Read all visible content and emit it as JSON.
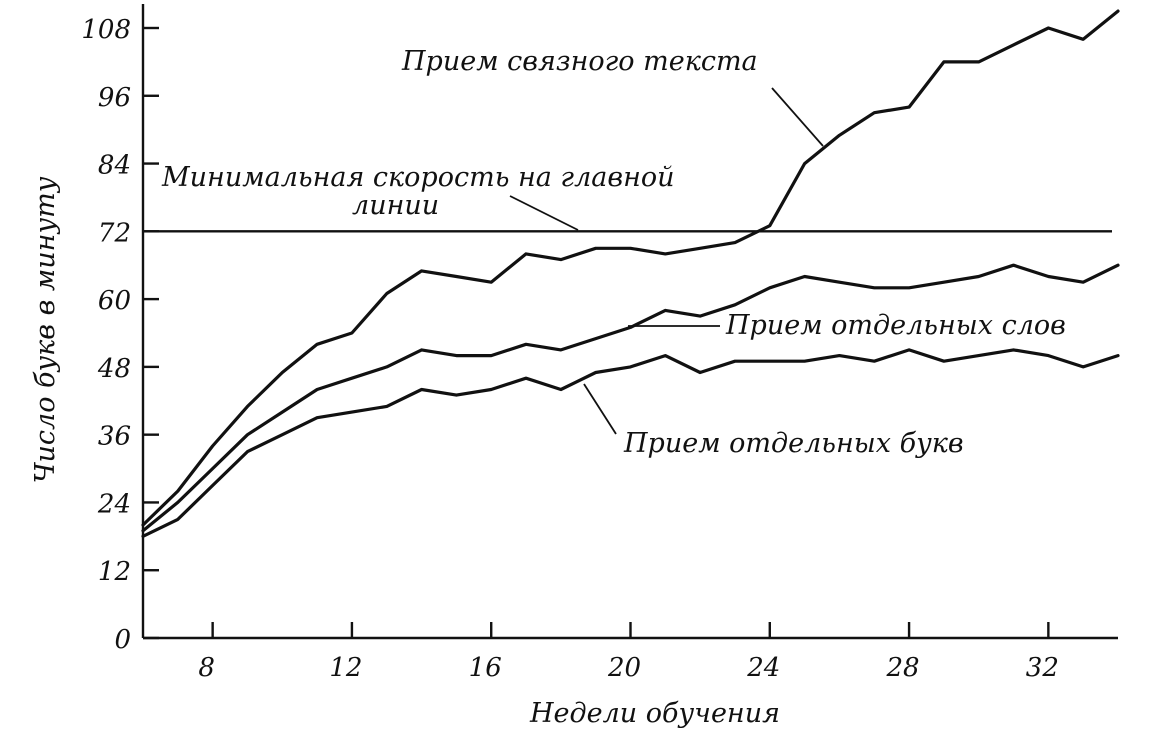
{
  "chart_data": {
    "type": "line",
    "title": "",
    "xlabel": "Недели обучения",
    "ylabel": "Число букв в минуту",
    "xlim": [
      6,
      34
    ],
    "ylim": [
      0,
      108
    ],
    "x_ticks": [
      8,
      12,
      16,
      20,
      24,
      28,
      32
    ],
    "y_ticks": [
      0,
      12,
      24,
      36,
      48,
      60,
      72,
      84,
      96,
      108
    ],
    "x_tick_labels": [
      "8",
      "12",
      "16",
      "20",
      "24",
      "28",
      "32"
    ],
    "y_tick_labels": [
      "0",
      "12",
      "24",
      "36",
      "48",
      "60",
      "72",
      "84",
      "96",
      "108"
    ],
    "grid": false,
    "reference_line": {
      "y": 72,
      "label_line1": "Минимальная скорость на главной",
      "label_line2": "линии"
    },
    "series": [
      {
        "name": "Прием связного текста",
        "x": [
          6,
          7,
          8,
          9,
          10,
          11,
          12,
          13,
          14,
          15,
          16,
          17,
          18,
          19,
          20,
          21,
          22,
          23,
          24,
          25,
          26,
          27,
          28,
          29,
          30,
          31,
          32,
          33,
          34
        ],
        "y": [
          20,
          26,
          34,
          41,
          47,
          52,
          54,
          61,
          65,
          64,
          63,
          68,
          67,
          69,
          69,
          68,
          69,
          70,
          73,
          84,
          89,
          93,
          94,
          102,
          102,
          105,
          108,
          106,
          111
        ]
      },
      {
        "name": "Прием отдельных слов",
        "x": [
          6,
          7,
          8,
          9,
          10,
          11,
          12,
          13,
          14,
          15,
          16,
          17,
          18,
          19,
          20,
          21,
          22,
          23,
          24,
          25,
          26,
          27,
          28,
          29,
          30,
          31,
          32,
          33,
          34
        ],
        "y": [
          19,
          24,
          30,
          36,
          40,
          44,
          46,
          48,
          51,
          50,
          50,
          52,
          51,
          53,
          55,
          58,
          57,
          59,
          62,
          64,
          63,
          62,
          62,
          63,
          64,
          66,
          64,
          63,
          66
        ]
      },
      {
        "name": "Прием отдельных букв",
        "x": [
          6,
          7,
          8,
          9,
          10,
          11,
          12,
          13,
          14,
          15,
          16,
          17,
          18,
          19,
          20,
          21,
          22,
          23,
          24,
          25,
          26,
          27,
          28,
          29,
          30,
          31,
          32,
          33,
          34
        ],
        "y": [
          18,
          21,
          27,
          33,
          36,
          39,
          40,
          41,
          44,
          43,
          44,
          46,
          44,
          47,
          48,
          50,
          47,
          49,
          49,
          49,
          50,
          49,
          51,
          49,
          50,
          51,
          50,
          48,
          50
        ]
      }
    ]
  }
}
